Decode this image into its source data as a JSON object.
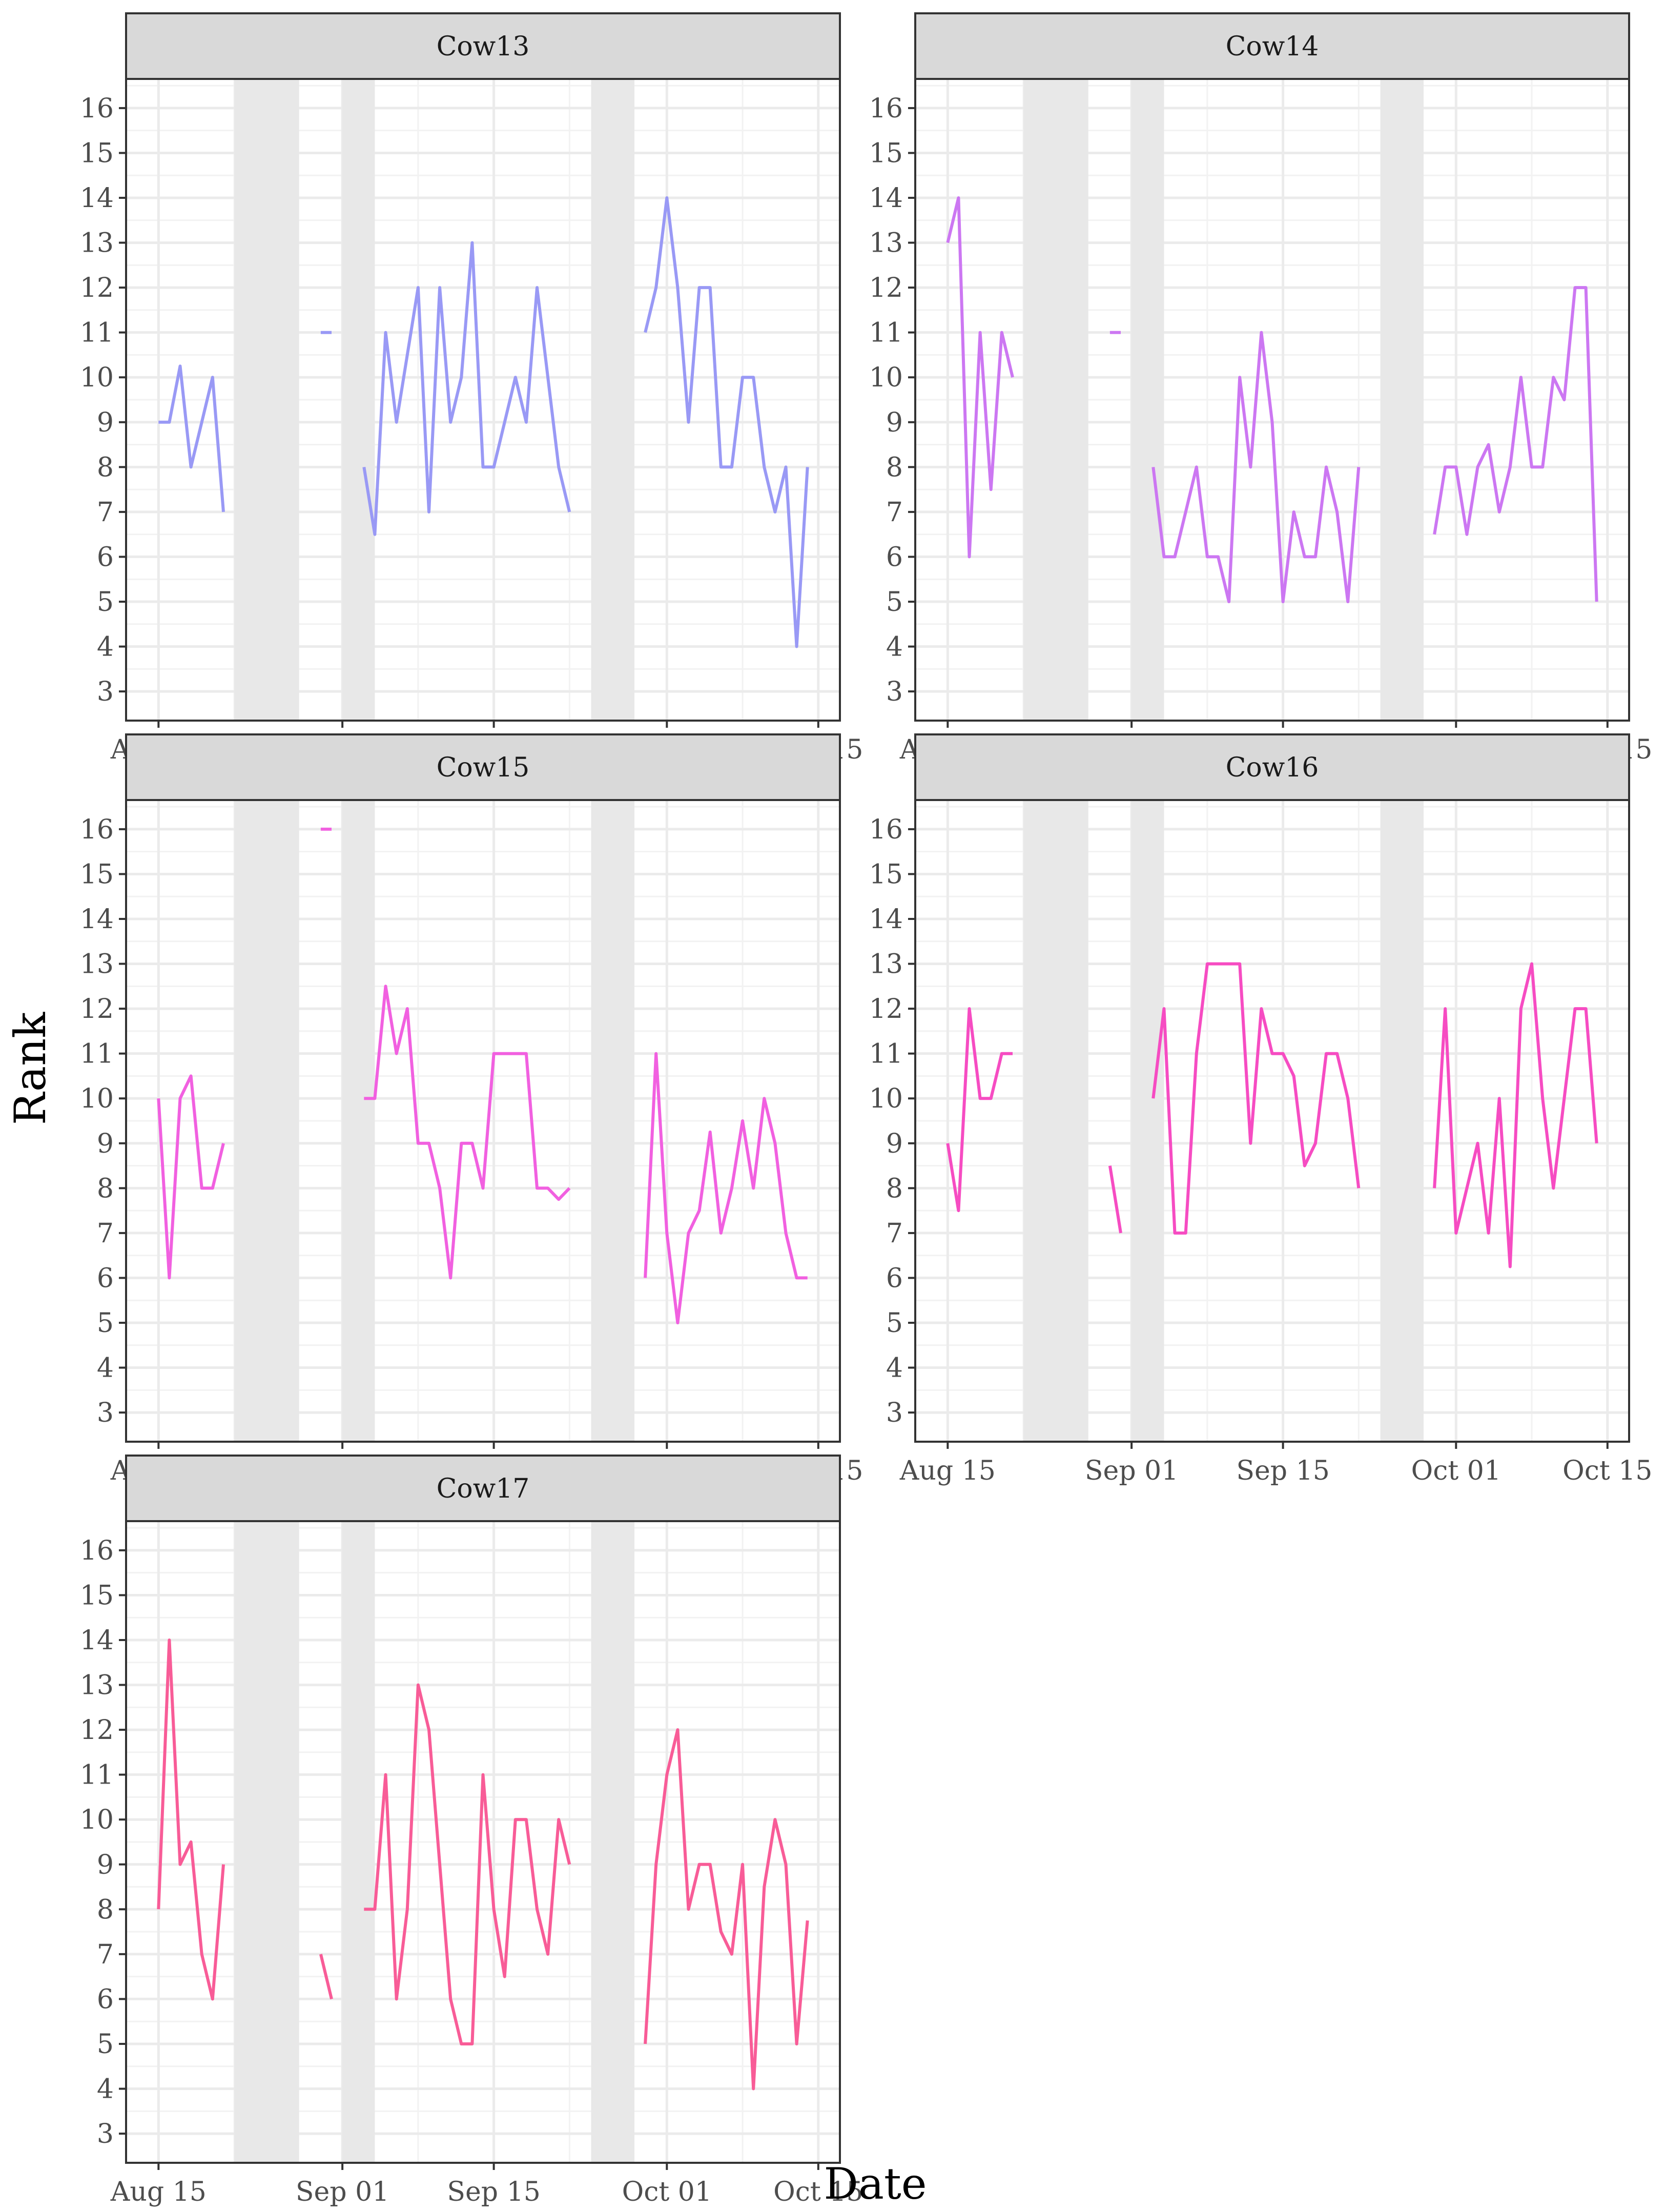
{
  "chart_data": {
    "type": "line",
    "xlabel": "Date",
    "ylabel": "Rank",
    "xlim": [
      "2020-08-12",
      "2020-10-17"
    ],
    "ylim": [
      2.35,
      16.65
    ],
    "y_ticks": [
      "3",
      "4",
      "5",
      "6",
      "7",
      "8",
      "9",
      "10",
      "11",
      "12",
      "13",
      "14",
      "15",
      "16"
    ],
    "x_ticks": [
      {
        "date": "2020-08-15",
        "label": "Aug 15"
      },
      {
        "date": "2020-09-01",
        "label": "Sep 01"
      },
      {
        "date": "2020-09-15",
        "label": "Sep 15"
      },
      {
        "date": "2020-10-01",
        "label": "Oct 01"
      },
      {
        "date": "2020-10-15",
        "label": "Oct 15"
      }
    ],
    "minor_x_gridlines": [
      "2020-08-08",
      "2020-08-22",
      "2020-09-08",
      "2020-09-22",
      "2020-10-08",
      "2020-10-22"
    ],
    "grid": true,
    "shaded_periods": [
      {
        "start": "2020-08-22",
        "end": "2020-08-28"
      },
      {
        "start": "2020-09-01",
        "end": "2020-09-04"
      },
      {
        "start": "2020-09-24",
        "end": "2020-09-28"
      }
    ],
    "shade_color": "#e8e8e8",
    "panels": [
      {
        "name": "Cow13",
        "color": "#9999f5",
        "segments": [
          {
            "start": "2020-08-15",
            "values": [
              9,
              9,
              10.25,
              8,
              9,
              10,
              7
            ]
          },
          {
            "start": "2020-08-30",
            "values": [
              11,
              11
            ]
          },
          {
            "start": "2020-09-03",
            "values": [
              8,
              6.5,
              11,
              9,
              10.5,
              12,
              7,
              12,
              9,
              10,
              13,
              8,
              8,
              9,
              10,
              9,
              12,
              10,
              8,
              7
            ]
          },
          {
            "start": "2020-09-29",
            "values": [
              11,
              12,
              14,
              12,
              9,
              12,
              12,
              8,
              8,
              10,
              10,
              8,
              7,
              8,
              4,
              8
            ]
          }
        ]
      },
      {
        "name": "Cow14",
        "color": "#cc77f2",
        "segments": [
          {
            "start": "2020-08-15",
            "values": [
              13,
              14,
              6,
              11,
              7.5,
              11,
              10
            ]
          },
          {
            "start": "2020-08-30",
            "values": [
              11,
              11
            ]
          },
          {
            "start": "2020-09-03",
            "values": [
              8,
              6,
              6,
              7,
              8,
              6,
              6,
              5,
              10,
              8,
              11,
              9,
              5,
              7,
              6,
              6,
              8,
              7,
              5,
              8
            ]
          },
          {
            "start": "2020-09-29",
            "values": [
              6.5,
              8,
              8,
              6.5,
              8,
              8.5,
              7,
              8,
              10,
              8,
              8,
              10,
              9.5,
              12,
              12,
              5
            ]
          }
        ]
      },
      {
        "name": "Cow15",
        "color": "#f160e0",
        "segments": [
          {
            "start": "2020-08-15",
            "values": [
              10,
              6,
              10,
              10.5,
              8,
              8,
              9
            ]
          },
          {
            "start": "2020-08-30",
            "values": [
              16,
              16
            ]
          },
          {
            "start": "2020-09-03",
            "values": [
              10,
              10,
              12.5,
              11,
              12,
              9,
              9,
              8,
              6,
              9,
              9,
              8,
              11,
              11,
              11,
              11,
              8,
              8,
              7.75,
              8
            ]
          },
          {
            "start": "2020-09-29",
            "values": [
              6,
              11,
              7,
              5,
              7,
              7.5,
              9.25,
              7,
              8,
              9.5,
              8,
              10,
              9,
              7,
              6,
              6
            ]
          }
        ]
      },
      {
        "name": "Cow16",
        "color": "#f64cc2",
        "segments": [
          {
            "start": "2020-08-15",
            "values": [
              9,
              7.5,
              12,
              10,
              10,
              11,
              11
            ]
          },
          {
            "start": "2020-08-30",
            "values": [
              8.5,
              7
            ]
          },
          {
            "start": "2020-09-03",
            "values": [
              10,
              12,
              7,
              7,
              11,
              13,
              13,
              13,
              13,
              9,
              12,
              11,
              11,
              10.5,
              8.5,
              9,
              11,
              11,
              10,
              8
            ]
          },
          {
            "start": "2020-09-29",
            "values": [
              8,
              12,
              7,
              8,
              9,
              7,
              10,
              6.25,
              12,
              13,
              10,
              8,
              10,
              12,
              12,
              9
            ]
          }
        ]
      },
      {
        "name": "Cow17",
        "color": "#f85c97",
        "segments": [
          {
            "start": "2020-08-15",
            "values": [
              8,
              14,
              9,
              9.5,
              7,
              6,
              9
            ]
          },
          {
            "start": "2020-08-30",
            "values": [
              7,
              6
            ]
          },
          {
            "start": "2020-09-03",
            "values": [
              8,
              8,
              11,
              6,
              8,
              13,
              12,
              9,
              6,
              5,
              5,
              11,
              8,
              6.5,
              10,
              10,
              8,
              7,
              10,
              9
            ]
          },
          {
            "start": "2020-09-29",
            "values": [
              5,
              9,
              11,
              12,
              8,
              9,
              9,
              7.5,
              7,
              9,
              4,
              8.5,
              10,
              9,
              5,
              7.75
            ]
          }
        ]
      }
    ]
  }
}
